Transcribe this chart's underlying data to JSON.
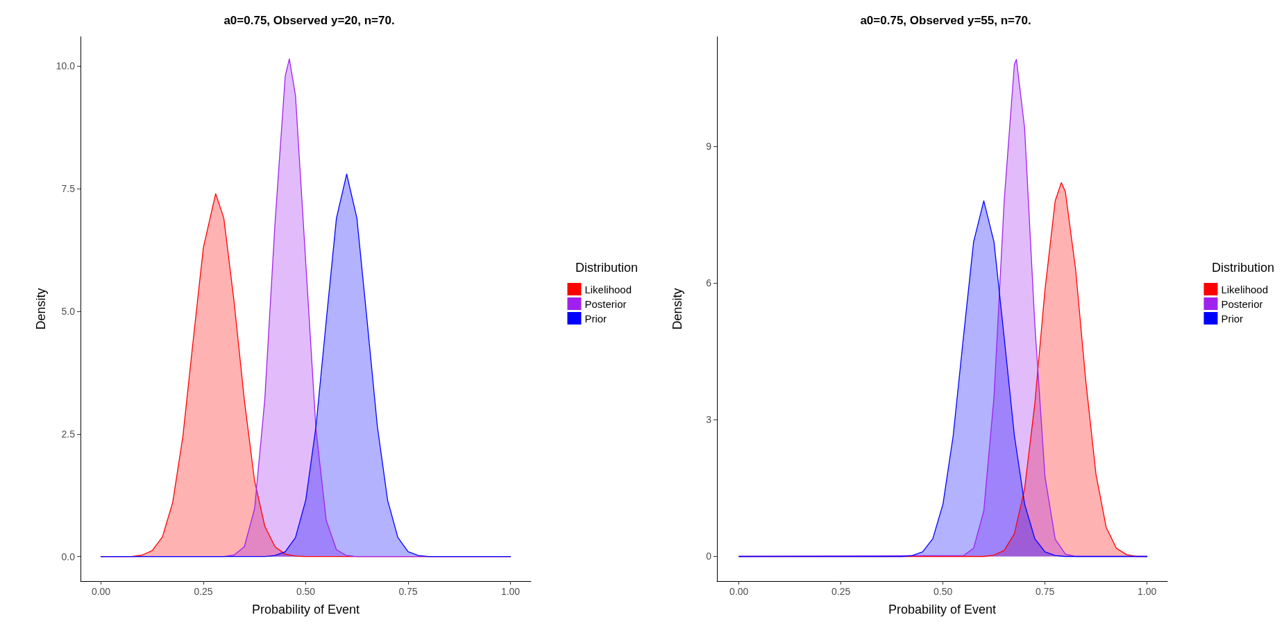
{
  "chart_data": [
    {
      "type": "area",
      "title": "a0=0.75, Observed y=20, n=70.",
      "xlabel": "Probability of Event",
      "ylabel": "Density",
      "legend_title": "Distribution",
      "legend": "right",
      "grid": false,
      "marker": "none",
      "line_style": "solid",
      "xlim": [
        -0.05,
        1.05
      ],
      "xticks": [
        {
          "value": 0,
          "label": "0.00"
        },
        {
          "value": 0.25,
          "label": "0.25"
        },
        {
          "value": 0.5,
          "label": "0.50"
        },
        {
          "value": 0.75,
          "label": "0.75"
        },
        {
          "value": 1,
          "label": "1.00"
        }
      ],
      "ylim": [
        -0.5,
        10.6
      ],
      "yticks": [
        {
          "value": 0,
          "label": "0.0"
        },
        {
          "value": 2.5,
          "label": "2.5"
        },
        {
          "value": 5,
          "label": "5.0"
        },
        {
          "value": 7.5,
          "label": "7.5"
        },
        {
          "value": 10,
          "label": "10.0"
        }
      ],
      "series": [
        {
          "name": "Likelihood",
          "color": "#ff0000",
          "x": [
            0,
            0.075,
            0.1,
            0.125,
            0.15,
            0.175,
            0.2,
            0.225,
            0.25,
            0.28,
            0.3,
            0.325,
            0.35,
            0.375,
            0.4,
            0.425,
            0.45,
            0.475,
            0.5,
            1
          ],
          "values": [
            0,
            0,
            0.03,
            0.12,
            0.4,
            1.1,
            2.45,
            4.4,
            6.3,
            7.4,
            6.9,
            5.2,
            3.2,
            1.55,
            0.62,
            0.2,
            0.05,
            0.01,
            0,
            0
          ]
        },
        {
          "name": "Posterior",
          "color": "#a020f0",
          "x": [
            0,
            0.3,
            0.325,
            0.35,
            0.375,
            0.4,
            0.425,
            0.45,
            0.46,
            0.475,
            0.5,
            0.525,
            0.55,
            0.575,
            0.6,
            0.625,
            1
          ],
          "values": [
            0,
            0,
            0.03,
            0.2,
            0.97,
            3.2,
            6.8,
            9.8,
            10.15,
            9.4,
            6.0,
            2.6,
            0.74,
            0.14,
            0.02,
            0,
            0
          ]
        },
        {
          "name": "Prior",
          "color": "#0000ff",
          "x": [
            0,
            0.4,
            0.425,
            0.45,
            0.475,
            0.5,
            0.525,
            0.55,
            0.575,
            0.6,
            0.625,
            0.65,
            0.675,
            0.7,
            0.725,
            0.75,
            0.775,
            0.8,
            1
          ],
          "values": [
            0,
            0,
            0.02,
            0.1,
            0.39,
            1.15,
            2.65,
            4.8,
            6.9,
            7.8,
            6.9,
            4.8,
            2.65,
            1.15,
            0.39,
            0.1,
            0.02,
            0,
            0
          ]
        }
      ]
    },
    {
      "type": "area",
      "title": "a0=0.75, Observed y=55, n=70.",
      "xlabel": "Probability of Event",
      "ylabel": "Density",
      "legend_title": "Distribution",
      "legend": "right",
      "grid": false,
      "marker": "none",
      "line_style": "solid",
      "xlim": [
        -0.054,
        1.05
      ],
      "xticks": [
        {
          "value": 0,
          "label": "0.00"
        },
        {
          "value": 0.25,
          "label": "0.25"
        },
        {
          "value": 0.5,
          "label": "0.50"
        },
        {
          "value": 0.75,
          "label": "0.75"
        },
        {
          "value": 1,
          "label": "1.00"
        }
      ],
      "ylim": [
        -0.54,
        11.4
      ],
      "yticks": [
        0,
        3,
        6,
        9
      ],
      "series": [
        {
          "name": "Likelihood",
          "color": "#ff0000",
          "x": [
            0,
            0.6,
            0.625,
            0.65,
            0.675,
            0.7,
            0.725,
            0.75,
            0.775,
            0.79,
            0.8,
            0.825,
            0.85,
            0.875,
            0.9,
            0.925,
            0.95,
            0.975,
            1
          ],
          "values": [
            0,
            0,
            0.03,
            0.13,
            0.5,
            1.48,
            3.35,
            5.85,
            7.8,
            8.2,
            8.0,
            6.3,
            3.85,
            1.8,
            0.64,
            0.18,
            0.04,
            0,
            0
          ]
        },
        {
          "name": "Posterior",
          "color": "#a020f0",
          "x": [
            0,
            0.55,
            0.575,
            0.6,
            0.625,
            0.65,
            0.675,
            0.68,
            0.7,
            0.725,
            0.75,
            0.775,
            0.8,
            0.825,
            1
          ],
          "values": [
            0,
            0.02,
            0.18,
            1.0,
            3.5,
            7.8,
            10.8,
            10.9,
            9.4,
            5.1,
            1.75,
            0.38,
            0.05,
            0,
            0
          ]
        },
        {
          "name": "Prior",
          "color": "#0000ff",
          "x": [
            0,
            0.4,
            0.425,
            0.45,
            0.475,
            0.5,
            0.525,
            0.55,
            0.575,
            0.6,
            0.625,
            0.65,
            0.675,
            0.7,
            0.725,
            0.75,
            0.775,
            0.8,
            1
          ],
          "values": [
            0,
            0,
            0.02,
            0.1,
            0.39,
            1.15,
            2.65,
            4.8,
            6.9,
            7.8,
            6.9,
            4.8,
            2.65,
            1.15,
            0.39,
            0.1,
            0.02,
            0,
            0
          ]
        }
      ]
    }
  ]
}
